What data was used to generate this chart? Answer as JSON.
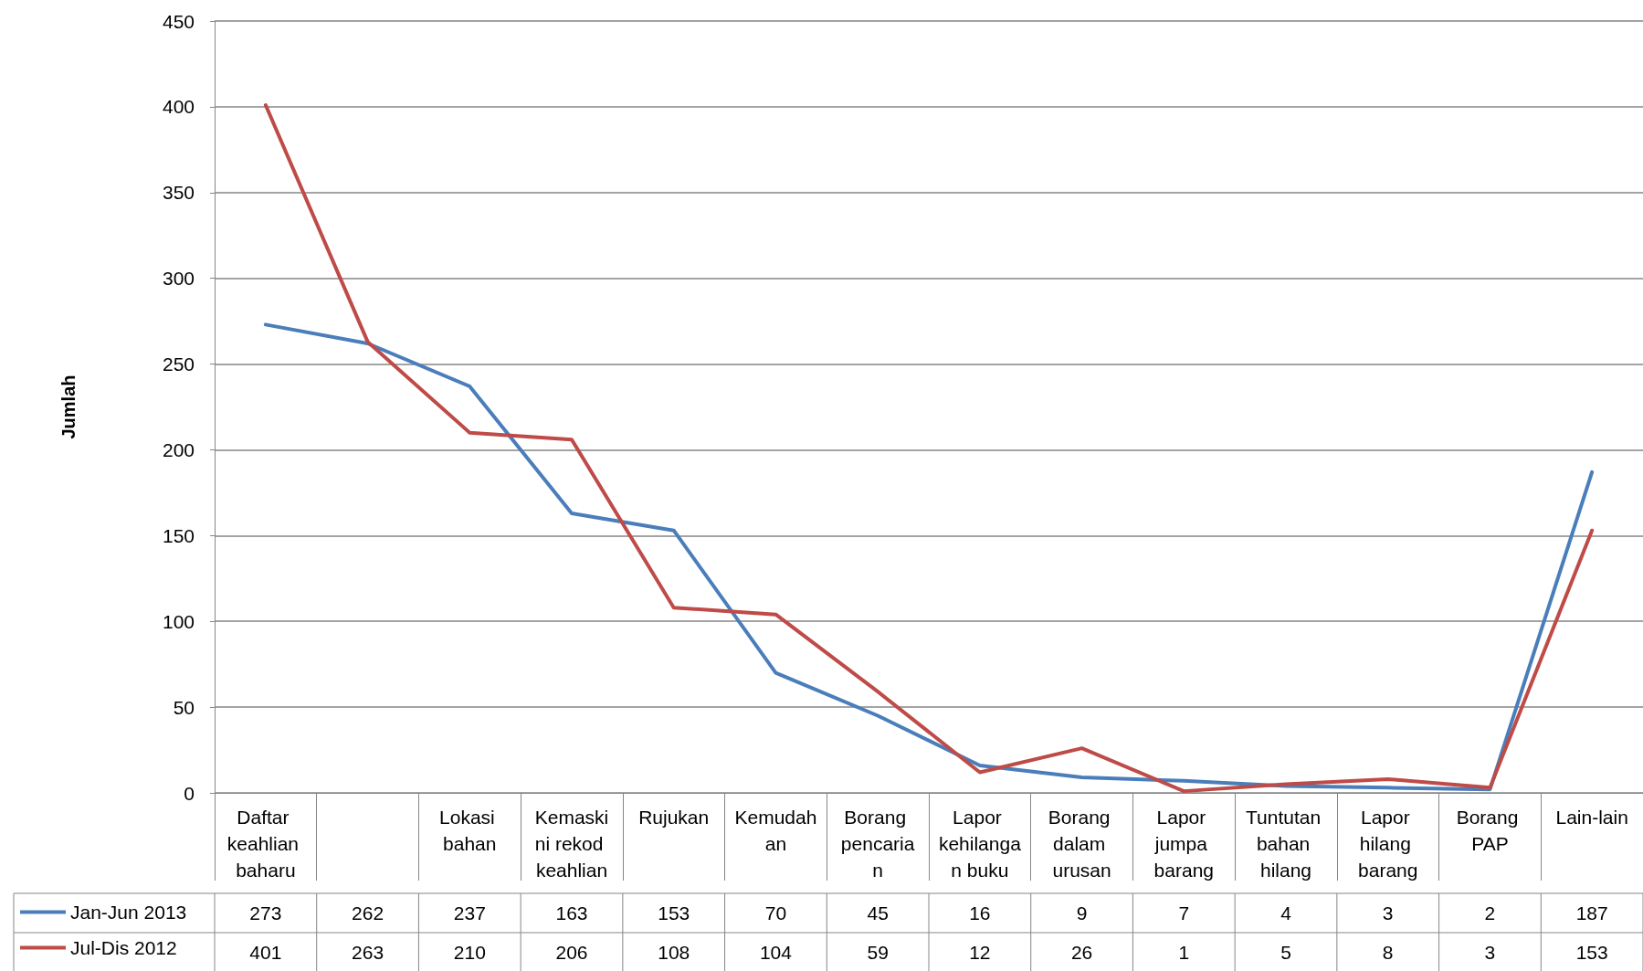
{
  "chart_data": {
    "type": "line",
    "ylabel": "Jumlah",
    "categories": [
      "Daftar keahlian baharu",
      null,
      "Lokasi bahan",
      "Kemaskini rekod keahlian",
      "Rujukan",
      "Kemudahan",
      "Borang pencarian",
      "Lapor kehilangan buku",
      "Borang dalam urusan",
      "Lapor jumpa barang",
      "Tuntutan bahan hilang",
      "Lapor hilang barang",
      "Borang PAP",
      "Lain-lain"
    ],
    "series": [
      {
        "name": "Jan-Jun 2013",
        "color": "#4a7ebb",
        "values": [
          273,
          262,
          237,
          163,
          153,
          70,
          45,
          16,
          9,
          7,
          4,
          3,
          2,
          187
        ]
      },
      {
        "name": "Jul-Dis 2012",
        "color": "#be4b48",
        "values": [
          401,
          263,
          210,
          206,
          108,
          104,
          59,
          12,
          26,
          1,
          5,
          8,
          3,
          153
        ]
      }
    ],
    "ylim": [
      0,
      450
    ],
    "yticks": [
      0,
      50,
      100,
      150,
      200,
      250,
      300,
      350,
      400,
      450
    ],
    "grid": "y",
    "legend": "bottom left",
    "marker": "none",
    "line_style": "solid",
    "data_labels": true
  }
}
